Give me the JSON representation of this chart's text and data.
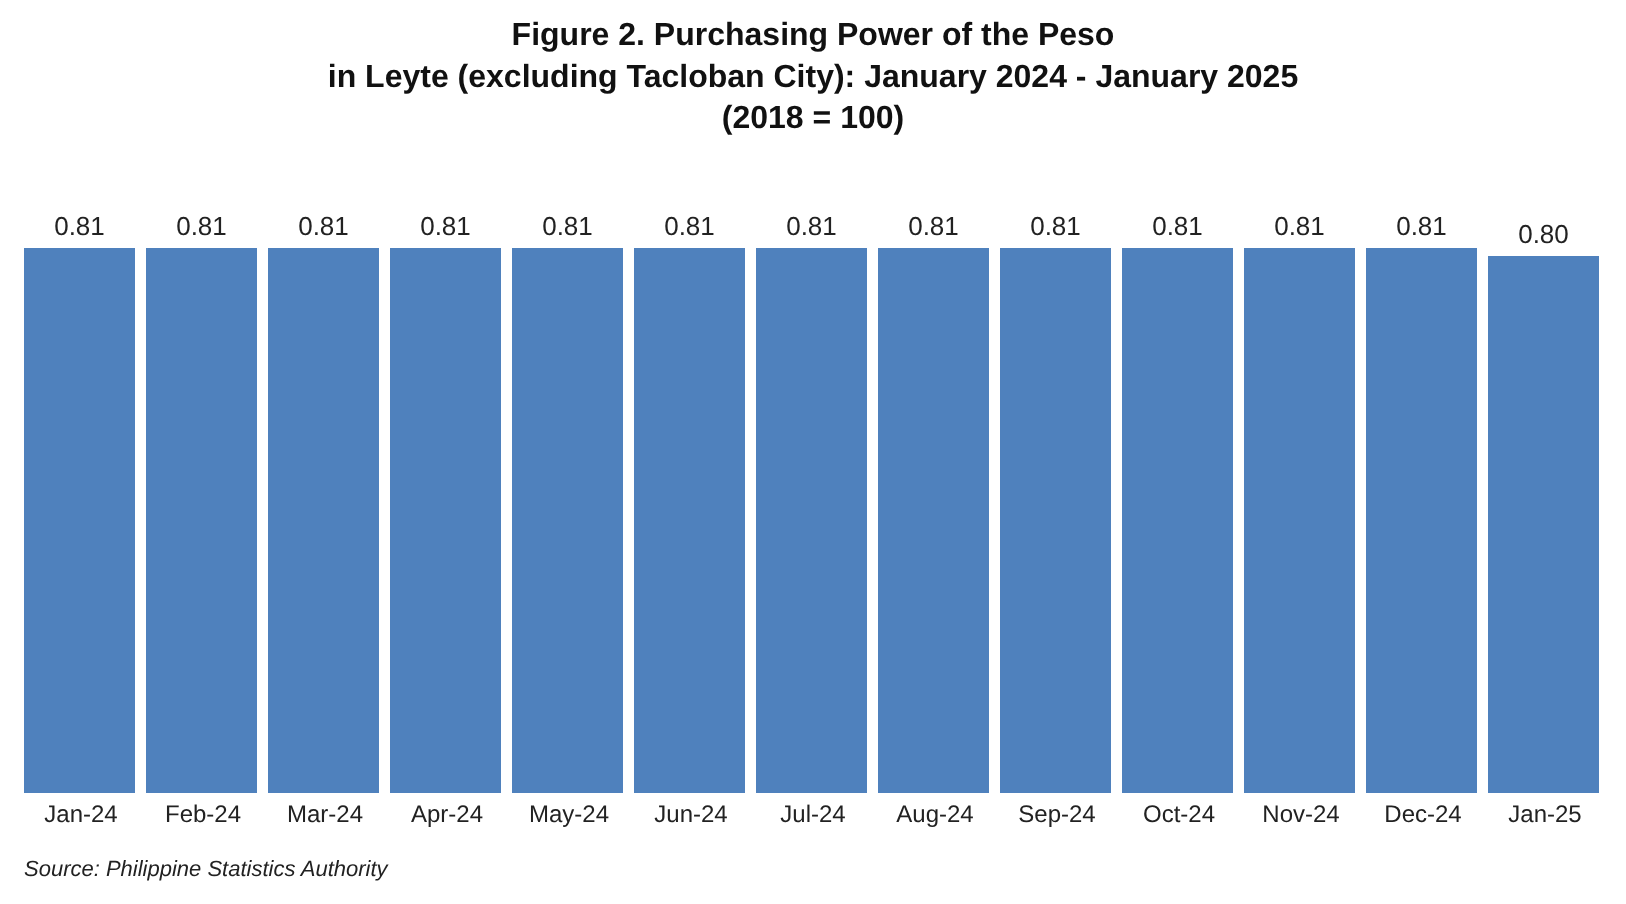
{
  "chart_data": {
    "type": "bar",
    "title": "Figure 2. Purchasing Power of the Peso\nin Leyte (excluding Tacloban City): January 2024 - January 2025\n(2018 = 100)",
    "categories": [
      "Jan-24",
      "Feb-24",
      "Mar-24",
      "Apr-24",
      "May-24",
      "Jun-24",
      "Jul-24",
      "Aug-24",
      "Sep-24",
      "Oct-24",
      "Nov-24",
      "Dec-24",
      "Jan-25"
    ],
    "values": [
      0.81,
      0.81,
      0.81,
      0.81,
      0.81,
      0.81,
      0.81,
      0.81,
      0.81,
      0.81,
      0.81,
      0.81,
      0.8
    ],
    "value_labels": [
      "0.81",
      "0.81",
      "0.81",
      "0.81",
      "0.81",
      "0.81",
      "0.81",
      "0.81",
      "0.81",
      "0.81",
      "0.81",
      "0.81",
      "0.80"
    ],
    "color": "#4f81bd",
    "tick_labels": "x",
    "annotations": [
      "Source: Philippine Statistics Authority"
    ]
  }
}
